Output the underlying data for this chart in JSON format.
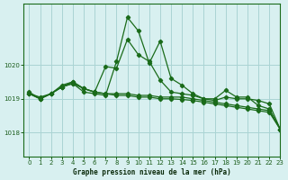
{
  "title": "Graphe pression niveau de la mer (hPa)",
  "bg_color": "#d8f0f0",
  "grid_color": "#aad4d4",
  "line_color": "#1a6b1a",
  "xlim": [
    -0.5,
    23
  ],
  "ylim": [
    1017.3,
    1021.8
  ],
  "yticks": [
    1018,
    1019,
    1020
  ],
  "xticks": [
    0,
    1,
    2,
    3,
    4,
    5,
    6,
    7,
    8,
    9,
    10,
    11,
    12,
    13,
    14,
    15,
    16,
    17,
    18,
    19,
    20,
    21,
    22,
    23
  ],
  "series": [
    [
      1019.15,
      1019.05,
      1019.15,
      1019.35,
      1019.45,
      1019.2,
      1019.15,
      1019.1,
      1020.1,
      1021.4,
      1021.0,
      1020.05,
      1020.7,
      1019.6,
      1019.4,
      1019.15,
      1019.0,
      1019.0,
      1019.25,
      1019.05,
      1019.05,
      1018.8,
      1018.7,
      1018.1
    ],
    [
      1019.2,
      1019.0,
      1019.15,
      1019.4,
      1019.5,
      1019.3,
      1019.2,
      1019.95,
      1019.9,
      1020.75,
      1020.3,
      1020.1,
      1019.55,
      1019.2,
      1019.15,
      1019.1,
      1019.0,
      1018.95,
      1019.05,
      1019.0,
      1019.0,
      1018.95,
      1018.85,
      1018.1
    ],
    [
      1019.15,
      1019.0,
      1019.15,
      1019.35,
      1019.5,
      1019.3,
      1019.2,
      1019.15,
      1019.15,
      1019.15,
      1019.1,
      1019.1,
      1019.05,
      1019.05,
      1019.05,
      1019.0,
      1018.95,
      1018.9,
      1018.85,
      1018.8,
      1018.75,
      1018.7,
      1018.65,
      1018.1
    ],
    [
      1019.15,
      1019.0,
      1019.15,
      1019.35,
      1019.45,
      1019.3,
      1019.2,
      1019.15,
      1019.1,
      1019.1,
      1019.05,
      1019.05,
      1019.0,
      1019.0,
      1018.98,
      1018.95,
      1018.9,
      1018.85,
      1018.8,
      1018.75,
      1018.7,
      1018.65,
      1018.6,
      1018.1
    ]
  ]
}
